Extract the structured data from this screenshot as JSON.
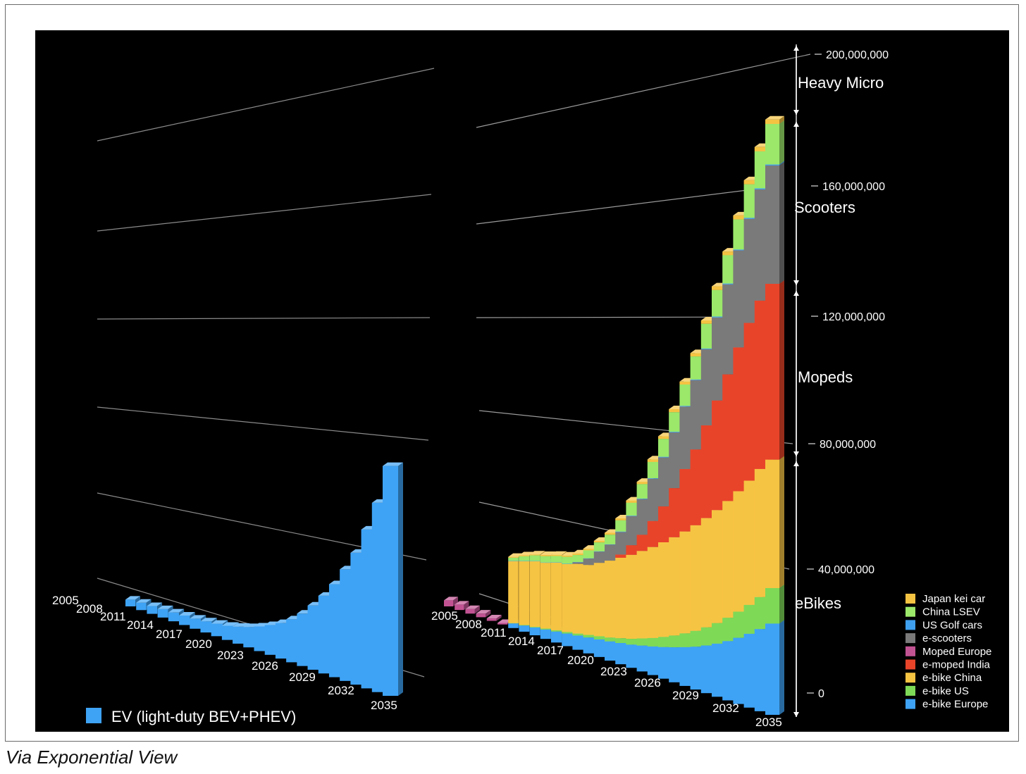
{
  "caption": "Via Exponential View",
  "colors": {
    "Japan kei car": "#F5C342",
    "China LSEV": "#9BE86A",
    "US Golf cars": "#3FA0F0",
    "e-scooters": "#7A7A7A",
    "Moped Europe": "#C25393",
    "e-moped India": "#E8442A",
    "e-bike China": "#F6C443",
    "e-bike US": "#7ED957",
    "e-bike Europe": "#3EA3F5",
    "EV (light-duty BEV+PHEV)": "#3EA3F5"
  },
  "chart_data": [
    {
      "type": "bar",
      "title": "",
      "legend": [
        "EV (light-duty BEV+PHEV)"
      ],
      "legend_position": "bottom-left",
      "tick_labels": [
        "2005",
        "2008",
        "2011",
        "2014",
        "2017",
        "2020",
        "2023",
        "2026",
        "2029",
        "2032",
        "2035"
      ],
      "categories": [
        "2011",
        "2012",
        "2013",
        "2014",
        "2015",
        "2016",
        "2017",
        "2018",
        "2019",
        "2020",
        "2021",
        "2022",
        "2023",
        "2024",
        "2025",
        "2026",
        "2027",
        "2028",
        "2029",
        "2030",
        "2031",
        "2032",
        "2033",
        "2034",
        "2035"
      ],
      "series": [
        {
          "name": "EV (light-duty BEV+PHEV)",
          "values": [
            2000000,
            2200000,
            2300000,
            2500000,
            2600000,
            2800000,
            3000000,
            3300000,
            3700000,
            4200000,
            5000000,
            6000000,
            7300000,
            8800000,
            10500000,
            12700000,
            15500000,
            19000000,
            23000000,
            27500000,
            33000000,
            39000000,
            47000000,
            56000000,
            68000000
          ]
        }
      ],
      "grid": true,
      "ylim": [
        0,
        200000000
      ]
    },
    {
      "type": "bar",
      "stacked": true,
      "title": "",
      "tick_labels": [
        "2005",
        "2008",
        "2011",
        "2014",
        "2017",
        "2020",
        "2023",
        "2026",
        "2029",
        "2032",
        "2035"
      ],
      "y_ticks": [
        "200,000,000",
        "160,000,000",
        "120,000,000",
        "80,000,000",
        "40,000,000",
        "0"
      ],
      "ylim": [
        0,
        200000000
      ],
      "grid": true,
      "group_labels": [
        "Heavy Micro",
        "Scooters",
        "Mopeds",
        "eBikes"
      ],
      "legend": [
        "Japan kei car",
        "China LSEV",
        "US Golf cars",
        "e-scooters",
        "Moped Europe",
        "e-moped India",
        "e-bike China",
        "e-bike US",
        "e-bike Europe"
      ],
      "legend_position": "bottom-right",
      "categories": [
        "2005",
        "2006",
        "2007",
        "2008",
        "2009",
        "2010",
        "2011",
        "2012",
        "2013",
        "2014",
        "2015",
        "2016",
        "2017",
        "2018",
        "2019",
        "2020",
        "2021",
        "2022",
        "2023",
        "2024",
        "2025",
        "2026",
        "2027",
        "2028",
        "2029",
        "2030",
        "2031",
        "2032",
        "2033",
        "2034",
        "2035"
      ],
      "series": [
        {
          "name": "e-bike Europe",
          "values": [
            0,
            0,
            0,
            0,
            0,
            0,
            1500000,
            2000000,
            2500000,
            3000000,
            3500000,
            4000000,
            4500000,
            5000000,
            5500000,
            6000000,
            6600000,
            7200000,
            8000000,
            8800000,
            9700000,
            10700000,
            11800000,
            13000000,
            14400000,
            16000000,
            17800000,
            19800000,
            22000000,
            24400000,
            27000000
          ]
        },
        {
          "name": "e-bike US",
          "values": [
            0,
            0,
            0,
            0,
            0,
            0,
            100000,
            150000,
            200000,
            300000,
            400000,
            500000,
            600000,
            800000,
            1000000,
            1200000,
            1500000,
            1800000,
            2200000,
            2600000,
            3100000,
            3600000,
            4200000,
            4800000,
            5500000,
            6200000,
            7000000,
            7800000,
            8600000,
            9500000,
            10500000
          ]
        },
        {
          "name": "e-bike China",
          "values": [
            0,
            0,
            0,
            0,
            0,
            0,
            20000000,
            20500000,
            21000000,
            21000000,
            21500000,
            21500000,
            22000000,
            22000000,
            23000000,
            24000000,
            25000000,
            26000000,
            27000000,
            28000000,
            29000000,
            30000000,
            31000000,
            32000000,
            33000000,
            34000000,
            35000000,
            36000000,
            37000000,
            38000000,
            38000000
          ]
        },
        {
          "name": "Moped Europe",
          "values": [
            2000000,
            1800000,
            1500000,
            1200000,
            800000,
            500000,
            0,
            0,
            0,
            0,
            0,
            0,
            0,
            0,
            0,
            0,
            0,
            0,
            0,
            0,
            0,
            0,
            0,
            0,
            0,
            0,
            0,
            0,
            0,
            0,
            0
          ]
        },
        {
          "name": "e-moped India",
          "values": [
            0,
            0,
            0,
            0,
            0,
            0,
            0,
            0,
            0,
            0,
            0,
            0,
            0,
            0,
            0,
            0,
            1000000,
            3000000,
            5000000,
            8000000,
            11000000,
            15000000,
            19000000,
            23000000,
            28000000,
            33000000,
            38000000,
            43000000,
            47000000,
            50000000,
            52000000
          ]
        },
        {
          "name": "e-scooters",
          "values": [
            0,
            0,
            0,
            0,
            0,
            0,
            0,
            0,
            0,
            0,
            0,
            0,
            500000,
            2000000,
            3500000,
            5000000,
            7000000,
            9000000,
            11000000,
            13000000,
            15000000,
            17000000,
            19000000,
            21000000,
            23000000,
            25000000,
            27000000,
            29000000,
            31000000,
            33000000,
            35000000
          ]
        },
        {
          "name": "US Golf cars",
          "values": [
            0,
            0,
            0,
            0,
            0,
            0,
            100000,
            100000,
            100000,
            100000,
            100000,
            100000,
            100000,
            100000,
            100000,
            100000,
            150000,
            150000,
            150000,
            150000,
            200000,
            200000,
            200000,
            200000,
            200000,
            250000,
            250000,
            250000,
            300000,
            300000,
            300000
          ]
        },
        {
          "name": "China LSEV",
          "values": [
            0,
            0,
            0,
            0,
            0,
            0,
            1000000,
            1500000,
            1800000,
            2000000,
            2000000,
            2200000,
            2200000,
            2500000,
            2800000,
            3000000,
            3500000,
            4000000,
            4500000,
            5000000,
            5500000,
            6000000,
            6500000,
            7000000,
            7500000,
            8000000,
            8500000,
            9000000,
            10000000,
            11000000,
            12000000
          ]
        },
        {
          "name": "Japan kei car",
          "values": [
            0,
            0,
            0,
            0,
            0,
            0,
            300000,
            300000,
            300000,
            400000,
            400000,
            400000,
            500000,
            500000,
            500000,
            600000,
            600000,
            700000,
            700000,
            800000,
            800000,
            900000,
            900000,
            1000000,
            1000000,
            1100000,
            1100000,
            1200000,
            1200000,
            1300000,
            1300000
          ]
        }
      ]
    }
  ]
}
